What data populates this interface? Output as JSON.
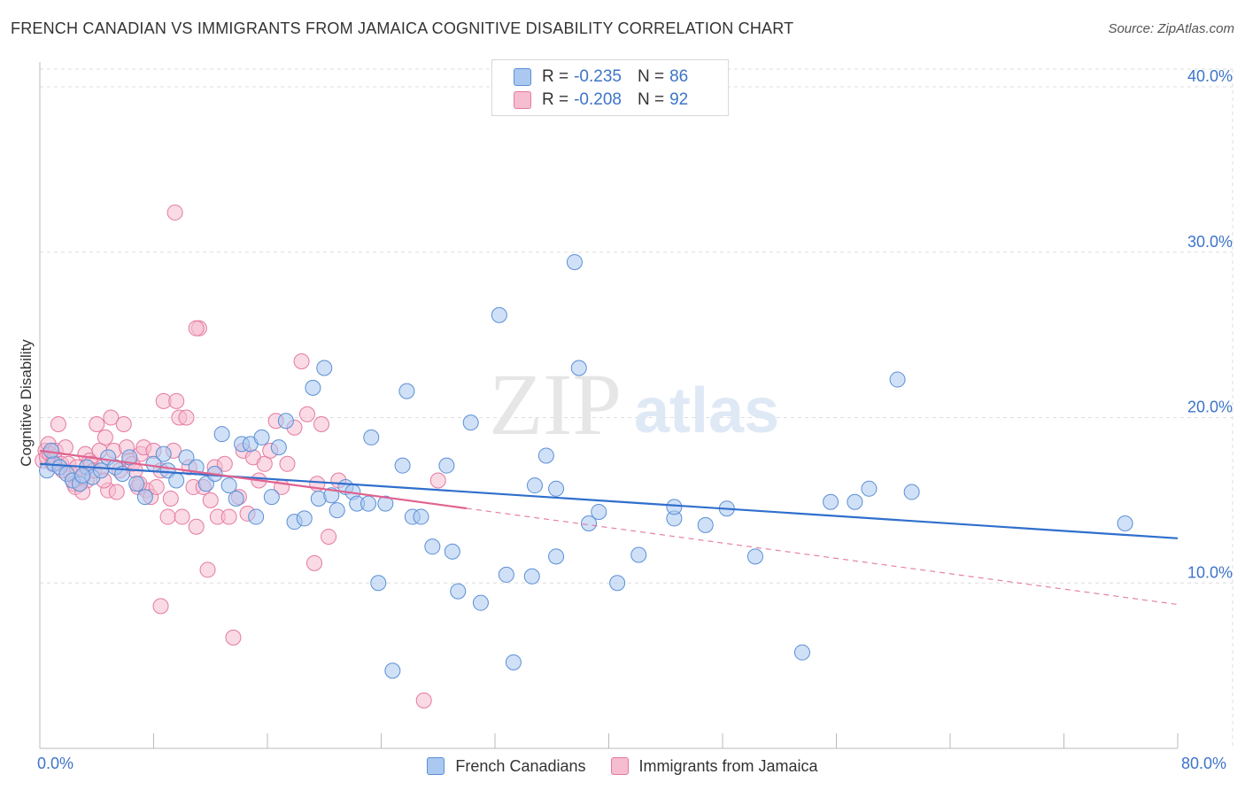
{
  "title": "FRENCH CANADIAN VS IMMIGRANTS FROM JAMAICA COGNITIVE DISABILITY CORRELATION CHART",
  "source": "Source: ZipAtlas.com",
  "watermark": {
    "zip": "ZIP",
    "atlas": "atlas"
  },
  "legend_top": [
    {
      "r_label": "R =",
      "r_value": "-0.235",
      "n_label": "N =",
      "n_value": "86"
    },
    {
      "r_label": "R =",
      "r_value": "-0.208",
      "n_label": "N =",
      "n_value": "92"
    }
  ],
  "legend_bottom": [
    "French Canadians",
    "Immigrants from Jamaica"
  ],
  "x_tick_labels": {
    "left": "0.0%",
    "right": "80.0%"
  },
  "chart_data": {
    "type": "scatter",
    "title": "FRENCH CANADIAN VS IMMIGRANTS FROM JAMAICA COGNITIVE DISABILITY CORRELATION CHART",
    "xlabel": "",
    "ylabel": "Cognitive Disability",
    "xlim": [
      0,
      80
    ],
    "ylim": [
      0,
      41.5
    ],
    "y_ticks": [
      10,
      20,
      30,
      40
    ],
    "y_tick_labels": [
      "10.0%",
      "20.0%",
      "30.0%",
      "40.0%"
    ],
    "grid": true,
    "colors": {
      "french": {
        "fill": "#aac8f0",
        "stroke": "#5b8fd6",
        "line": "#2f6fcc"
      },
      "jamaica": {
        "fill": "#f6bcd0",
        "stroke": "#e47aa0",
        "line": "#e0628f"
      }
    },
    "series": [
      {
        "name": "French Canadians",
        "trend": {
          "x1": 0,
          "y1": 17.2,
          "x2": 80,
          "y2": 12.7,
          "solid_to": 80
        },
        "points": [
          [
            0.5,
            16.8
          ],
          [
            1.0,
            17.2
          ],
          [
            1.4,
            17.0
          ],
          [
            1.9,
            16.6
          ],
          [
            2.3,
            16.2
          ],
          [
            2.8,
            16.0
          ],
          [
            3.3,
            17.0
          ],
          [
            3.7,
            16.4
          ],
          [
            4.3,
            16.8
          ],
          [
            4.8,
            17.6
          ],
          [
            5.3,
            17.0
          ],
          [
            5.8,
            16.6
          ],
          [
            6.3,
            17.6
          ],
          [
            6.8,
            16.0
          ],
          [
            7.4,
            15.2
          ],
          [
            8.0,
            17.2
          ],
          [
            8.7,
            17.8
          ],
          [
            9.0,
            16.8
          ],
          [
            9.6,
            16.2
          ],
          [
            10.3,
            17.6
          ],
          [
            11.0,
            17.0
          ],
          [
            11.7,
            16.0
          ],
          [
            12.3,
            16.6
          ],
          [
            12.8,
            19.0
          ],
          [
            13.3,
            15.9
          ],
          [
            13.8,
            15.1
          ],
          [
            14.2,
            18.4
          ],
          [
            14.8,
            18.4
          ],
          [
            15.2,
            14.0
          ],
          [
            15.6,
            18.8
          ],
          [
            16.3,
            15.2
          ],
          [
            16.8,
            18.2
          ],
          [
            17.3,
            19.8
          ],
          [
            17.9,
            13.7
          ],
          [
            18.6,
            13.9
          ],
          [
            19.2,
            21.8
          ],
          [
            19.6,
            15.1
          ],
          [
            20.0,
            23.0
          ],
          [
            20.5,
            15.3
          ],
          [
            20.9,
            14.4
          ],
          [
            21.5,
            15.8
          ],
          [
            22.0,
            15.5
          ],
          [
            22.3,
            14.8
          ],
          [
            23.1,
            14.8
          ],
          [
            23.3,
            18.8
          ],
          [
            23.8,
            10.0
          ],
          [
            24.3,
            14.8
          ],
          [
            24.8,
            4.7
          ],
          [
            25.5,
            17.1
          ],
          [
            25.8,
            21.6
          ],
          [
            26.2,
            14.0
          ],
          [
            26.8,
            14.0
          ],
          [
            27.6,
            12.2
          ],
          [
            28.6,
            17.1
          ],
          [
            29.0,
            11.9
          ],
          [
            29.4,
            9.5
          ],
          [
            30.3,
            19.7
          ],
          [
            31.0,
            8.8
          ],
          [
            32.3,
            26.2
          ],
          [
            32.8,
            10.5
          ],
          [
            33.3,
            5.2
          ],
          [
            34.6,
            10.4
          ],
          [
            34.8,
            15.9
          ],
          [
            35.6,
            17.7
          ],
          [
            36.3,
            15.7
          ],
          [
            36.3,
            11.6
          ],
          [
            37.6,
            29.4
          ],
          [
            37.9,
            23.0
          ],
          [
            38.6,
            13.6
          ],
          [
            39.3,
            14.3
          ],
          [
            40.6,
            10.0
          ],
          [
            42.1,
            11.7
          ],
          [
            44.6,
            13.9
          ],
          [
            44.6,
            14.6
          ],
          [
            46.8,
            13.5
          ],
          [
            48.3,
            14.5
          ],
          [
            50.3,
            11.6
          ],
          [
            53.6,
            5.8
          ],
          [
            55.6,
            14.9
          ],
          [
            57.3,
            14.9
          ],
          [
            58.3,
            15.7
          ],
          [
            60.3,
            22.3
          ],
          [
            61.3,
            15.5
          ],
          [
            76.3,
            13.6
          ],
          [
            0.8,
            18.0
          ],
          [
            3.0,
            16.5
          ]
        ]
      },
      {
        "name": "Immigrants from Jamaica",
        "trend": {
          "x1": 0,
          "y1": 18.0,
          "x2": 80,
          "y2": 8.7,
          "solid_to": 30
        },
        "points": [
          [
            0.2,
            17.4
          ],
          [
            0.4,
            18.0
          ],
          [
            0.5,
            17.6
          ],
          [
            0.6,
            18.4
          ],
          [
            0.7,
            17.8
          ],
          [
            0.9,
            17.2
          ],
          [
            1.0,
            17.6
          ],
          [
            1.1,
            18.0
          ],
          [
            1.3,
            19.6
          ],
          [
            1.5,
            17.2
          ],
          [
            1.6,
            16.8
          ],
          [
            1.8,
            18.2
          ],
          [
            2.0,
            17.2
          ],
          [
            2.2,
            16.6
          ],
          [
            2.4,
            16.0
          ],
          [
            2.5,
            15.8
          ],
          [
            2.6,
            17.0
          ],
          [
            2.8,
            16.0
          ],
          [
            3.0,
            16.4
          ],
          [
            3.2,
            17.8
          ],
          [
            3.3,
            16.2
          ],
          [
            3.5,
            17.4
          ],
          [
            3.6,
            17.2
          ],
          [
            3.8,
            16.8
          ],
          [
            4.0,
            19.6
          ],
          [
            4.2,
            18.0
          ],
          [
            4.4,
            17.0
          ],
          [
            4.6,
            18.8
          ],
          [
            4.8,
            15.6
          ],
          [
            5.0,
            20.0
          ],
          [
            5.2,
            18.0
          ],
          [
            5.4,
            15.5
          ],
          [
            5.6,
            16.8
          ],
          [
            5.9,
            19.6
          ],
          [
            6.1,
            18.2
          ],
          [
            6.3,
            17.4
          ],
          [
            6.5,
            17.2
          ],
          [
            6.7,
            16.8
          ],
          [
            6.9,
            15.8
          ],
          [
            7.1,
            17.8
          ],
          [
            7.3,
            18.2
          ],
          [
            7.5,
            15.6
          ],
          [
            7.8,
            15.2
          ],
          [
            8.0,
            18.0
          ],
          [
            8.2,
            15.8
          ],
          [
            8.5,
            16.8
          ],
          [
            8.7,
            21.0
          ],
          [
            9.0,
            14.0
          ],
          [
            9.2,
            15.1
          ],
          [
            9.4,
            18.0
          ],
          [
            9.6,
            21.0
          ],
          [
            9.8,
            20.0
          ],
          [
            10.0,
            14.0
          ],
          [
            10.3,
            20.0
          ],
          [
            10.5,
            17.0
          ],
          [
            10.8,
            15.8
          ],
          [
            11.0,
            13.4
          ],
          [
            11.2,
            25.4
          ],
          [
            11.5,
            15.8
          ],
          [
            11.8,
            10.8
          ],
          [
            12.0,
            15.0
          ],
          [
            12.3,
            17.0
          ],
          [
            12.5,
            14.0
          ],
          [
            13.0,
            17.2
          ],
          [
            13.3,
            14.0
          ],
          [
            13.6,
            6.7
          ],
          [
            14.0,
            15.2
          ],
          [
            14.3,
            18.0
          ],
          [
            14.6,
            14.2
          ],
          [
            15.0,
            17.6
          ],
          [
            15.4,
            16.2
          ],
          [
            15.8,
            17.2
          ],
          [
            16.2,
            18.0
          ],
          [
            16.6,
            19.8
          ],
          [
            17.0,
            15.8
          ],
          [
            17.4,
            17.2
          ],
          [
            17.9,
            19.4
          ],
          [
            18.4,
            23.4
          ],
          [
            18.8,
            20.2
          ],
          [
            19.3,
            11.2
          ],
          [
            19.8,
            19.6
          ],
          [
            20.3,
            12.8
          ],
          [
            21.0,
            16.2
          ],
          [
            9.5,
            32.4
          ],
          [
            8.5,
            8.6
          ],
          [
            11.0,
            25.4
          ],
          [
            7.0,
            16.0
          ],
          [
            4.5,
            16.2
          ],
          [
            3.0,
            15.5
          ],
          [
            27.0,
            2.9
          ],
          [
            28.0,
            16.2
          ],
          [
            19.5,
            16.0
          ]
        ]
      }
    ]
  }
}
